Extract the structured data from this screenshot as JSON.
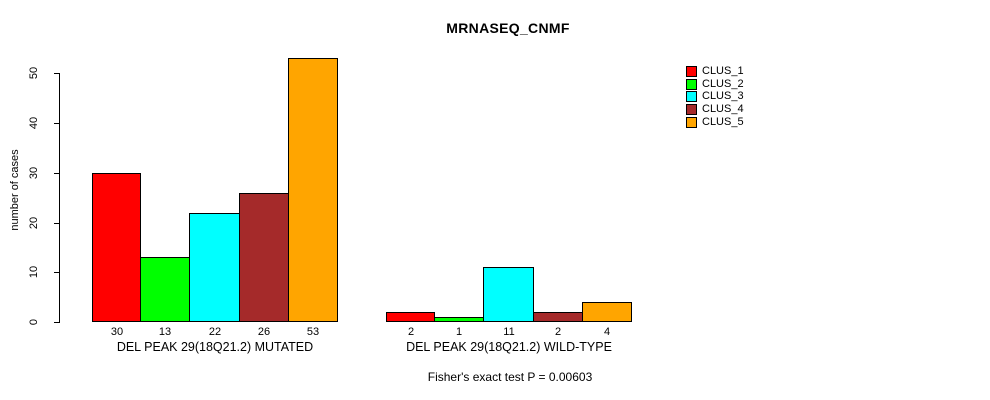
{
  "chart_data": {
    "type": "bar",
    "title": "MRNASEQ_CNMF",
    "xlabel": "",
    "ylabel": "number of cases",
    "ylim": [
      0,
      50
    ],
    "yticks": [
      0,
      10,
      20,
      30,
      40,
      50
    ],
    "grid": false,
    "legend_position": "top-right",
    "bar_outline_color": "#000000",
    "series_labels": [
      "CLUS_1",
      "CLUS_2",
      "CLUS_3",
      "CLUS_4",
      "CLUS_5"
    ],
    "series_colors": [
      "#FF0000",
      "#00FF00",
      "#00FFFF",
      "#A52A2A",
      "#FFA500"
    ],
    "groups": [
      {
        "label": "DEL PEAK 29(18Q21.2) MUTATED",
        "values": [
          30,
          13,
          22,
          26,
          53
        ]
      },
      {
        "label": "DEL PEAK 29(18Q21.2) WILD-TYPE",
        "values": [
          2,
          1,
          11,
          2,
          4
        ]
      }
    ],
    "bar_value_labels_shown": true,
    "annotation": "Fisher's exact test P = 0.00603"
  }
}
